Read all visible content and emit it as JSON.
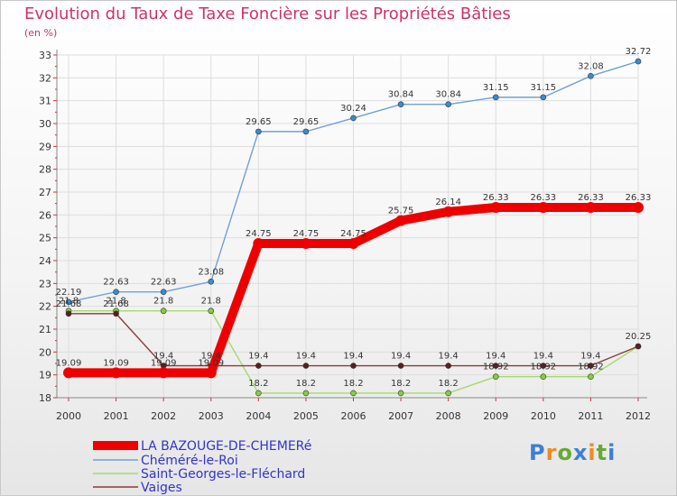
{
  "chart_data": {
    "type": "line",
    "title": "Evolution du Taux de Taxe Foncière sur les Propriétés Bâties",
    "subtitle": "(en %)",
    "xlabel": "",
    "ylabel": "(en %)",
    "categories": [
      "2000",
      "2001",
      "2002",
      "2003",
      "2004",
      "2005",
      "2006",
      "2007",
      "2008",
      "2009",
      "2010",
      "2011",
      "2012"
    ],
    "ylim": [
      18,
      33
    ],
    "yticks": [
      18,
      19,
      20,
      21,
      22,
      23,
      24,
      25,
      26,
      27,
      28,
      29,
      30,
      31,
      32,
      33
    ],
    "ytick_labels": [
      "18",
      "19",
      "20",
      "21",
      "22",
      "23",
      "24",
      "25",
      "26",
      "27",
      "28",
      "29",
      "30",
      "31",
      "32",
      "33"
    ],
    "legend_position": "bottom-left",
    "series": [
      {
        "name": "LA BAZOUGE-DE-CHEMERé",
        "color": "#ee0000",
        "marker_color": "#ee0000",
        "values": [
          19.09,
          19.09,
          19.09,
          19.09,
          24.75,
          24.75,
          24.75,
          25.75,
          26.14,
          26.33,
          26.33,
          26.33,
          26.33
        ],
        "labels": [
          "19.09",
          "19.09",
          "19.09",
          "19.09",
          "24.75",
          "24.75",
          "24.75",
          "25.75",
          "26.14",
          "26.33",
          "26.33",
          "26.33",
          "26.33"
        ]
      },
      {
        "name": "Chéméré-le-Roi",
        "color": "#6fa1d6",
        "marker_color": "#3a8bd0",
        "values": [
          22.19,
          22.63,
          22.63,
          23.08,
          29.65,
          29.65,
          30.24,
          30.84,
          30.84,
          31.15,
          31.15,
          32.08,
          32.72
        ],
        "labels": [
          "22.19",
          "22.63",
          "22.63",
          "23.08",
          "29.65",
          "29.65",
          "30.24",
          "30.84",
          "30.84",
          "31.15",
          "31.15",
          "32.08",
          "32.72"
        ]
      },
      {
        "name": "Saint-Georges-le-Fléchard",
        "color": "#a6d96a",
        "marker_color": "#88cc44",
        "values": [
          21.8,
          21.8,
          21.8,
          21.8,
          18.2,
          18.2,
          18.2,
          18.2,
          18.2,
          18.92,
          18.92,
          18.92,
          20.25
        ],
        "labels": [
          "21.8",
          "21.8",
          "21.8",
          "21.8",
          "18.2",
          "18.2",
          "18.2",
          "18.2",
          "18.2",
          "18.92",
          "18.92",
          "18.92",
          ""
        ]
      },
      {
        "name": "Vaiges",
        "color": "#8b3a3a",
        "marker_color": "#5a1f1f",
        "values": [
          21.68,
          21.68,
          19.4,
          19.4,
          19.4,
          19.4,
          19.4,
          19.4,
          19.4,
          19.4,
          19.4,
          19.4,
          20.25
        ],
        "labels": [
          "21.68",
          "21.68",
          "19.4",
          "19.4",
          "19.4",
          "19.4",
          "19.4",
          "19.4",
          "19.4",
          "19.4",
          "19.4",
          "19.4",
          "20.25"
        ]
      }
    ]
  },
  "logo": {
    "letters": [
      "P",
      "r",
      "o",
      "x",
      "i",
      "t",
      "i"
    ],
    "colors": [
      "#3d7fd6",
      "#ee8a22",
      "#66aa33",
      "#3d7fd6",
      "#ee8a22",
      "#66aa33",
      "#3d7fd6"
    ]
  }
}
